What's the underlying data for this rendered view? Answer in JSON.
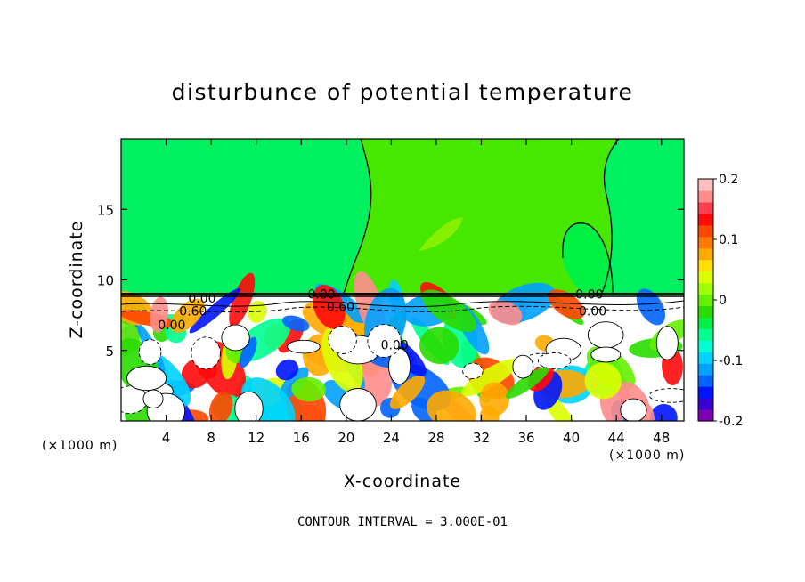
{
  "chart_data": {
    "type": "heatmap",
    "title": "disturbunce of potential temperature",
    "xlabel": "X-coordinate",
    "ylabel": "Z-coordinate",
    "x_units": "(×1000 m)",
    "y_units": "(×1000 m)",
    "xlim": [
      0,
      50
    ],
    "ylim": [
      0,
      20
    ],
    "x_ticks": [
      4,
      8,
      12,
      16,
      20,
      24,
      28,
      32,
      36,
      40,
      44,
      48
    ],
    "x_tick_labels": [
      "4",
      "8",
      "12",
      "16",
      "20",
      "24",
      "28",
      "32",
      "36",
      "40",
      "44",
      "48"
    ],
    "y_ticks": [
      5,
      10,
      15
    ],
    "y_tick_labels": [
      "5",
      "10",
      "15"
    ],
    "colorbar": {
      "min": -0.2,
      "max": 0.2,
      "ticks": [
        -0.2,
        -0.1,
        0,
        0.1,
        0.2
      ],
      "tick_labels": [
        "-0.2",
        "-0.1",
        "0",
        "0.1",
        "0.2"
      ],
      "colors": [
        "#7f00b2",
        "#3c00d2",
        "#0014ff",
        "#0064ff",
        "#00a0ff",
        "#00d2ff",
        "#00ffd2",
        "#00ff90",
        "#00f044",
        "#28dc00",
        "#64f000",
        "#a0ff00",
        "#dcff00",
        "#ffe100",
        "#ffaa00",
        "#ff7800",
        "#ff4600",
        "#ff0a0a",
        "#ff3c50",
        "#ff8c8c",
        "#ffbebe"
      ]
    },
    "contour_labels": [
      {
        "text": "0.00",
        "x": 7.2,
        "z": 8.7
      },
      {
        "text": "0.60",
        "x": 6.4,
        "z": 7.8
      },
      {
        "text": "0.00",
        "x": 4.5,
        "z": 6.8
      },
      {
        "text": "0.00",
        "x": 17.8,
        "z": 9.0
      },
      {
        "text": "0.60",
        "x": 19.5,
        "z": 8.1
      },
      {
        "text": "0.00",
        "x": 24.3,
        "z": 5.4
      },
      {
        "text": "0.00",
        "x": 41.6,
        "z": 9.0
      },
      {
        "text": "0.00",
        "x": 41.9,
        "z": 7.8
      }
    ],
    "contour_interval_text": "CONTOUR INTERVAL = 3.000E-01"
  }
}
